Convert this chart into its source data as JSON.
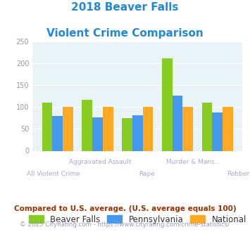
{
  "title_line1": "2018 Beaver Falls",
  "title_line2": "Violent Crime Comparison",
  "categories": [
    "All Violent Crime",
    "Aggravated Assault",
    "Rape",
    "Murder & Mans...",
    "Robbery"
  ],
  "beaver_falls": [
    110,
    117,
    75,
    212,
    110
  ],
  "pennsylvania": [
    79,
    76,
    82,
    126,
    88
  ],
  "national": [
    100,
    100,
    100,
    100,
    100
  ],
  "color_bf": "#88cc22",
  "color_pa": "#4499ee",
  "color_nat": "#ffaa22",
  "ylim": [
    0,
    250
  ],
  "yticks": [
    0,
    50,
    100,
    150,
    200,
    250
  ],
  "legend_labels": [
    "Beaver Falls",
    "Pennsylvania",
    "National"
  ],
  "footnote1": "Compared to U.S. average. (U.S. average equals 100)",
  "footnote2": "© 2025 CityRating.com - https://www.cityrating.com/crime-statistics/",
  "bg_color": "#e8f4f8",
  "title_color": "#2288dd",
  "footnote1_color": "#993300",
  "footnote2_color": "#9999bb",
  "tick_label_color": "#aaaacc",
  "ytick_color": "#999999"
}
